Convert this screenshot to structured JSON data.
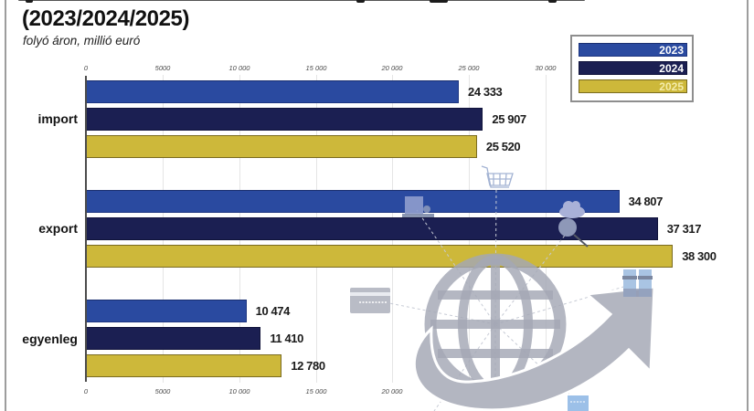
{
  "header": {
    "title_line_2": "(2023/2024/2025)",
    "subtitle": "folyó áron, millió euró"
  },
  "legend": {
    "items": [
      {
        "label": "2023",
        "color": "#2a4aa0"
      },
      {
        "label": "2024",
        "color": "#1b1f52"
      },
      {
        "label": "2025",
        "color": "#cdb83a"
      }
    ]
  },
  "axis": {
    "top_ticks": [
      "0",
      "5000",
      "10 000",
      "15 000",
      "20 000",
      "25 000",
      "30 000"
    ],
    "bottom_ticks": [
      "0",
      "5000",
      "10 000",
      "15 000",
      "20 000"
    ]
  },
  "icons": [
    "globe-icon",
    "growth-arrow-icon",
    "shopping-cart-icon",
    "package-icon",
    "cloud-search-icon",
    "credit-card-icon",
    "gift-box-icon",
    "storefront-icon"
  ],
  "chart_data": {
    "type": "bar",
    "orientation": "horizontal",
    "title": "(2023/2024/2025)",
    "subtitle": "folyó áron, millió euró",
    "xlabel": "",
    "ylabel": "",
    "xlim": [
      0,
      30000
    ],
    "x_ticks": [
      0,
      5000,
      10000,
      15000,
      20000,
      25000,
      30000
    ],
    "grid": true,
    "legend_position": "top-right",
    "categories": [
      "import",
      "export",
      "egyenleg"
    ],
    "series": [
      {
        "name": "2023",
        "color": "#2a4aa0",
        "values": [
          24333,
          34807,
          10474
        ]
      },
      {
        "name": "2024",
        "color": "#1b1f52",
        "values": [
          25907,
          37317,
          11410
        ]
      },
      {
        "name": "2025",
        "color": "#cdb83a",
        "values": [
          25520,
          38300,
          12780
        ]
      }
    ],
    "value_labels": [
      [
        "24 333",
        "25 907",
        "25 520"
      ],
      [
        "34 807",
        "37 317",
        "38 300"
      ],
      [
        "10 474",
        "11 410",
        "12 780"
      ]
    ]
  }
}
